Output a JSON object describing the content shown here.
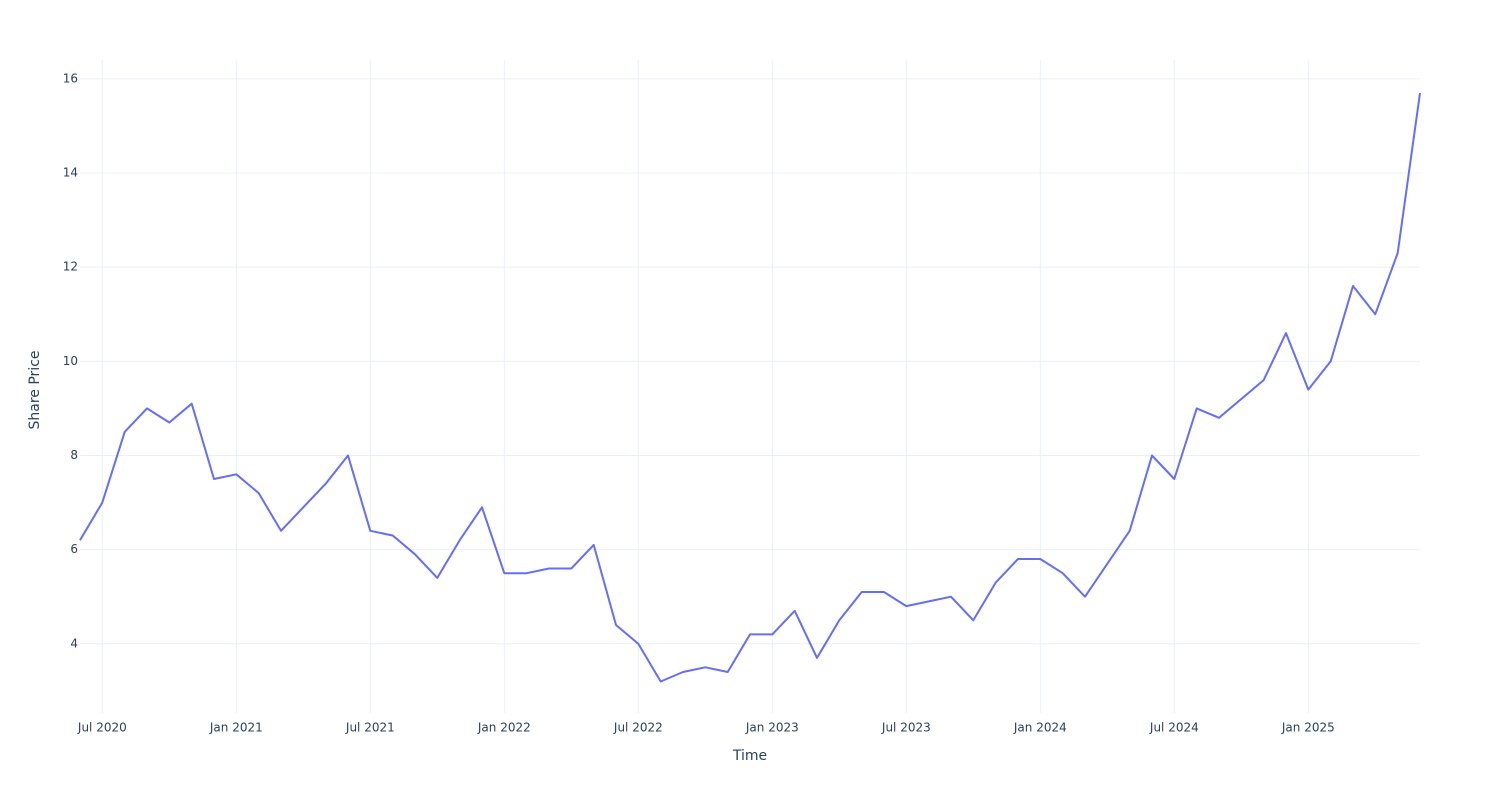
{
  "chart_data": {
    "type": "line",
    "xlabel": "Time",
    "ylabel": "Share Price",
    "x": [
      "2020-06",
      "2020-07",
      "2020-08",
      "2020-09",
      "2020-10",
      "2020-11",
      "2020-12",
      "2021-01",
      "2021-02",
      "2021-03",
      "2021-04",
      "2021-05",
      "2021-06",
      "2021-07",
      "2021-08",
      "2021-09",
      "2021-10",
      "2021-11",
      "2021-12",
      "2022-01",
      "2022-02",
      "2022-03",
      "2022-04",
      "2022-05",
      "2022-06",
      "2022-07",
      "2022-08",
      "2022-09",
      "2022-10",
      "2022-11",
      "2022-12",
      "2023-01",
      "2023-02",
      "2023-03",
      "2023-04",
      "2023-05",
      "2023-06",
      "2023-07",
      "2023-08",
      "2023-09",
      "2023-10",
      "2023-11",
      "2023-12",
      "2024-01",
      "2024-02",
      "2024-03",
      "2024-04",
      "2024-05",
      "2024-06",
      "2024-07",
      "2024-08",
      "2024-09",
      "2024-10",
      "2024-11",
      "2024-12",
      "2025-01",
      "2025-02",
      "2025-03",
      "2025-04",
      "2025-05",
      "2025-06"
    ],
    "series": [
      {
        "name": "Share Price",
        "color": "#636efa",
        "values": [
          6.2,
          7.0,
          8.5,
          9.0,
          8.7,
          9.1,
          7.5,
          7.6,
          7.2,
          6.4,
          6.9,
          7.4,
          8.0,
          6.4,
          6.3,
          5.9,
          5.4,
          6.2,
          6.9,
          5.5,
          5.5,
          5.6,
          5.6,
          6.1,
          4.4,
          4.0,
          3.2,
          3.4,
          3.5,
          3.4,
          4.2,
          4.2,
          4.7,
          3.7,
          4.5,
          5.1,
          5.1,
          4.8,
          4.9,
          5.0,
          4.5,
          5.3,
          5.8,
          5.8,
          5.5,
          5.0,
          5.7,
          6.4,
          8.0,
          7.5,
          9.0,
          8.8,
          9.2,
          9.6,
          10.6,
          9.4,
          10.0,
          11.6,
          11.0,
          12.3,
          15.7
        ]
      }
    ],
    "xlim": [
      "2020-06",
      "2025-06"
    ],
    "xticks": [
      {
        "value": "2020-07",
        "label": "Jul 2020"
      },
      {
        "value": "2021-01",
        "label": "Jan 2021"
      },
      {
        "value": "2021-07",
        "label": "Jul 2021"
      },
      {
        "value": "2022-01",
        "label": "Jan 2022"
      },
      {
        "value": "2022-07",
        "label": "Jul 2022"
      },
      {
        "value": "2023-01",
        "label": "Jan 2023"
      },
      {
        "value": "2023-07",
        "label": "Jul 2023"
      },
      {
        "value": "2024-01",
        "label": "Jan 2024"
      },
      {
        "value": "2024-07",
        "label": "Jul 2024"
      },
      {
        "value": "2025-01",
        "label": "Jan 2025"
      }
    ],
    "ylim": [
      2.53,
      16.4
    ],
    "yticks": [
      4,
      6,
      8,
      10,
      12,
      14,
      16
    ],
    "grid": true
  }
}
